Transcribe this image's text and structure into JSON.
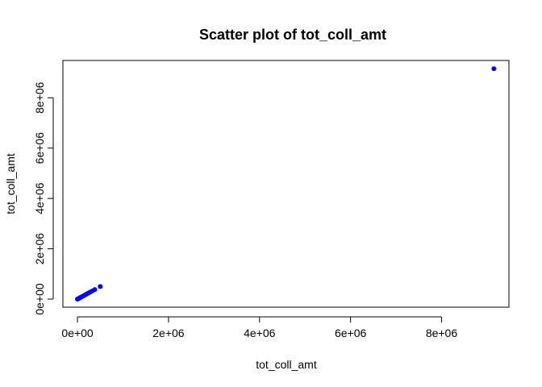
{
  "chart_data": {
    "type": "scatter",
    "title": "Scatter plot of tot_coll_amt",
    "xlabel": "tot_coll_amt",
    "ylabel": "tot_coll_amt",
    "xlim": [
      -320000,
      9480000
    ],
    "ylim": [
      -320000,
      9480000
    ],
    "x_ticks": [
      0,
      2000000,
      4000000,
      6000000,
      8000000
    ],
    "x_tick_labels": [
      "0e+00",
      "2e+06",
      "4e+06",
      "6e+06",
      "8e+06"
    ],
    "y_ticks": [
      0,
      2000000,
      4000000,
      6000000,
      8000000
    ],
    "y_tick_labels": [
      "0e+00",
      "2e+06",
      "4e+06",
      "6e+06",
      "8e+06"
    ],
    "point_color": "#0000ff",
    "grid": false,
    "legend": "none",
    "series": [
      {
        "x": [
          0,
          5000,
          12000,
          20000,
          30000,
          45000,
          60000,
          80000,
          100000,
          130000,
          160000,
          200000,
          240000,
          280000,
          330000,
          380000,
          500000,
          9150000
        ],
        "y": [
          0,
          5000,
          12000,
          20000,
          30000,
          45000,
          60000,
          80000,
          100000,
          130000,
          160000,
          200000,
          240000,
          280000,
          330000,
          380000,
          500000,
          9150000
        ]
      }
    ]
  }
}
